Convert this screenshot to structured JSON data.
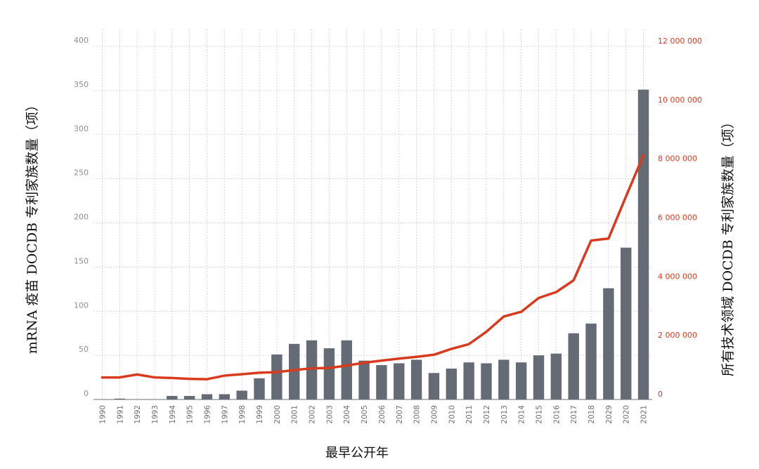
{
  "chart_data": {
    "type": "bar+line",
    "xlabel": "最早公开年",
    "ylabel_left": "mRNA 疫苗 DOCDB 专利家族数量（项）",
    "ylabel_right": "所有技术领域 DOCDB 专利家族数量（项）",
    "categories": [
      "1990",
      "1991",
      "1992",
      "1993",
      "1994",
      "1995",
      "1996",
      "1997",
      "1998",
      "1999",
      "2000",
      "2001",
      "2002",
      "2003",
      "2004",
      "2005",
      "2006",
      "2007",
      "2008",
      "2009",
      "2010",
      "2011",
      "2012",
      "2013",
      "2014",
      "2015",
      "2016",
      "2017",
      "2018",
      "2029",
      "2020",
      "2021"
    ],
    "series": [
      {
        "axis": "left",
        "kind": "bar",
        "color": "#646b74",
        "values": [
          0,
          1,
          0,
          0,
          4,
          4,
          6,
          6,
          10,
          24,
          51,
          63,
          67,
          58,
          67,
          44,
          39,
          41,
          45,
          30,
          35,
          42,
          41,
          45,
          42,
          50,
          52,
          75,
          86,
          126,
          172,
          351
        ]
      },
      {
        "axis": "right",
        "kind": "line",
        "color": "#d93a1e",
        "values": [
          750000,
          750000,
          850000,
          750000,
          730000,
          700000,
          690000,
          810000,
          860000,
          910000,
          930000,
          1000000,
          1060000,
          1070000,
          1150000,
          1250000,
          1320000,
          1390000,
          1450000,
          1520000,
          1720000,
          1880000,
          2300000,
          2820000,
          2980000,
          3450000,
          3650000,
          4050000,
          5400000,
          5470000,
          6900000,
          8300000
        ]
      }
    ],
    "ylim_left": [
      0,
      400
    ],
    "ylim_right": [
      0,
      12000000
    ],
    "yticks_left": [
      "0",
      "50",
      "100",
      "150",
      "200",
      "250",
      "300",
      "350",
      "400"
    ],
    "yticks_right": [
      "0",
      "2 000 000",
      "4 000 000",
      "6 000 000",
      "8 000 000",
      "10 000 000",
      "12 000 000"
    ],
    "grid": true,
    "legend": "none"
  },
  "colors": {
    "bar": "#646b74",
    "line": "#d93a1e",
    "right_axis": "#e0391b",
    "grid": "#c9ccd1"
  }
}
